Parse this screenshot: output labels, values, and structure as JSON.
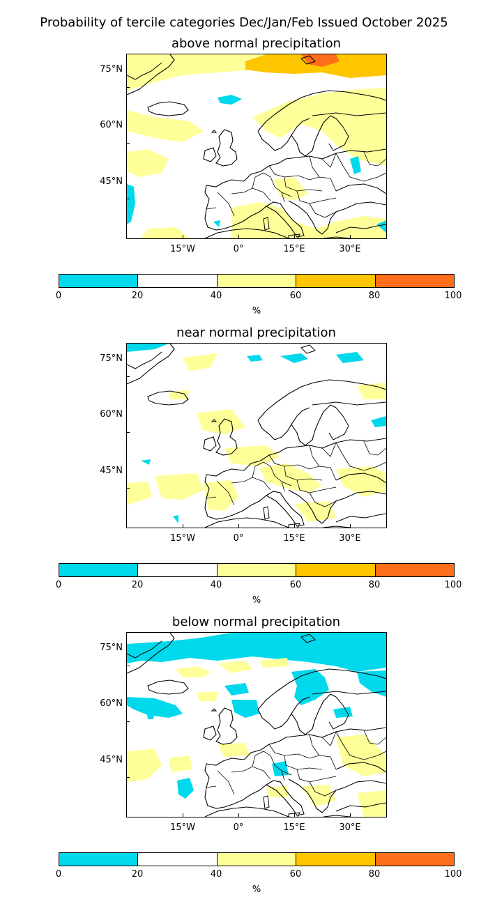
{
  "title": "Probability of tercile categories Dec/Jan/Feb Issued October 2025",
  "colors": {
    "cyan": "#00d8ec",
    "white": "#ffffff",
    "light_yellow": "#ffff99",
    "gold": "#ffc600",
    "orange": "#ff6e1a"
  },
  "axes": {
    "lat_labels": [
      "75°N",
      "60°N",
      "45°N"
    ],
    "lon_labels": [
      "15°W",
      "0°",
      "15°E",
      "30°E"
    ]
  },
  "colorbar": {
    "ticks": [
      "0",
      "20",
      "40",
      "60",
      "80",
      "100"
    ],
    "unit": "%",
    "bins": [
      {
        "range": "0-20",
        "color": "#00d8ec"
      },
      {
        "range": "20-40",
        "color": "#ffffff"
      },
      {
        "range": "40-60",
        "color": "#ffff99"
      },
      {
        "range": "60-80",
        "color": "#ffc600"
      },
      {
        "range": "80-100",
        "color": "#ff6e1a"
      }
    ]
  },
  "panels": [
    {
      "title": "above normal precipitation"
    },
    {
      "title": "near normal precipitation"
    },
    {
      "title": "below normal precipitation"
    }
  ]
}
